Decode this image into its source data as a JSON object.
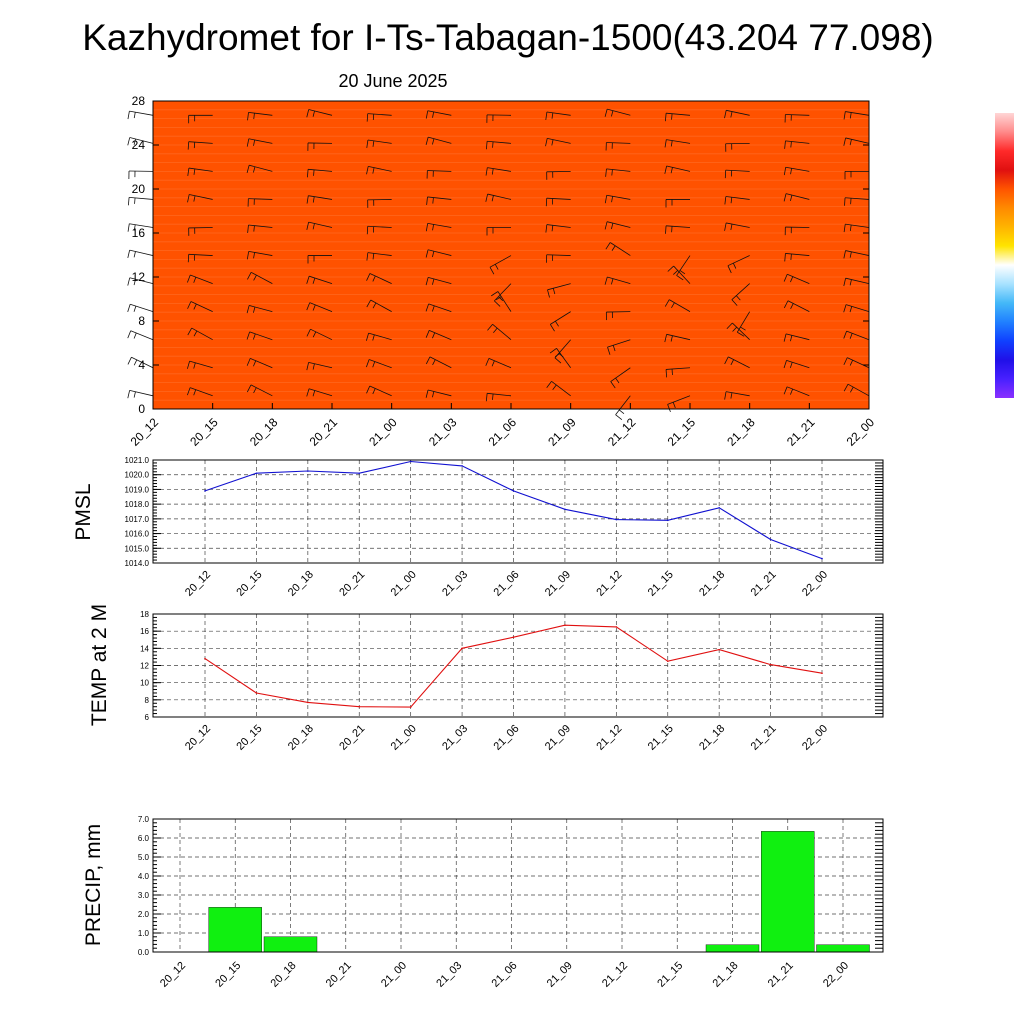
{
  "header": {
    "title": "Kazhydromet for I-Ts-Tabagan-1500(43.204 77.098)",
    "subtitle": "20 June 2025"
  },
  "chart_data": [
    {
      "type": "heatmap",
      "name": "vertical-profile",
      "x": [
        "20_12",
        "20_15",
        "20_18",
        "20_21",
        "21_00",
        "21_03",
        "21_06",
        "21_09",
        "21_12",
        "21_15",
        "21_18",
        "21_21",
        "22_00"
      ],
      "ylim": [
        0,
        28
      ],
      "yticks": [
        "0",
        "4",
        "8",
        "12",
        "16",
        "20",
        "24",
        "28"
      ],
      "colorscale": [
        {
          "value": 0,
          "color": "#ff5200"
        },
        {
          "value": 3,
          "color": "#ff6a00"
        },
        {
          "value": 6,
          "color": "#ff8800"
        },
        {
          "value": 9,
          "color": "#ffae00"
        },
        {
          "value": 11,
          "color": "#ffe030"
        },
        {
          "value": 11.6,
          "color": "#fff8b8"
        },
        {
          "value": 12.2,
          "color": "#eef6ff"
        },
        {
          "value": 13.5,
          "color": "#9ad8f8"
        },
        {
          "value": 15,
          "color": "#44b6f6"
        },
        {
          "value": 16.5,
          "color": "#2e8cf2"
        },
        {
          "value": 18,
          "color": "#205cff"
        },
        {
          "value": 19,
          "color": "#1030f0"
        },
        {
          "value": 20,
          "color": "#1a14e6"
        },
        {
          "value": 21,
          "color": "#3a12ff"
        },
        {
          "value": 22,
          "color": "#6422ff"
        },
        {
          "value": 23,
          "color": "#8a2cff"
        },
        {
          "value": 28,
          "color": "#8c2eff"
        }
      ],
      "colorbar": [
        "#ffd6d6",
        "#ff8a8a",
        "#ff2a2a",
        "#e01010",
        "#ff5400",
        "#ff8a00",
        "#ffb400",
        "#ffe400",
        "#ffffff",
        "#a8e2ff",
        "#44b8f8",
        "#2080ff",
        "#1040ff",
        "#2010e8",
        "#4820ff",
        "#8a30ff"
      ]
    },
    {
      "type": "line",
      "name": "pmsl",
      "ylabel": "PMSL",
      "x": [
        "20_12",
        "20_15",
        "20_18",
        "20_21",
        "21_00",
        "21_03",
        "21_06",
        "21_09",
        "21_12",
        "21_15",
        "21_18",
        "21_21",
        "22_00"
      ],
      "values": [
        1018.9,
        1020.1,
        1020.25,
        1020.1,
        1020.9,
        1020.6,
        1018.9,
        1017.65,
        1016.95,
        1016.9,
        1017.75,
        1015.6,
        1014.3
      ],
      "ylim": [
        1014.0,
        1021.0
      ],
      "yticks": [
        "1014.0",
        "1015.0",
        "1016.0",
        "1017.0",
        "1018.0",
        "1019.0",
        "1020.0",
        "1021.0"
      ],
      "color": "#1010d0",
      "grid": true
    },
    {
      "type": "line",
      "name": "temp",
      "ylabel": "TEMP at 2 M",
      "x": [
        "20_12",
        "20_15",
        "20_18",
        "20_21",
        "21_00",
        "21_03",
        "21_06",
        "21_09",
        "21_12",
        "21_15",
        "21_18",
        "21_21",
        "22_00"
      ],
      "values": [
        12.8,
        8.8,
        7.7,
        7.2,
        7.15,
        14.0,
        15.3,
        16.7,
        16.5,
        12.5,
        13.85,
        12.1,
        11.1
      ],
      "ylim": [
        6,
        18
      ],
      "yticks": [
        "6",
        "8",
        "10",
        "12",
        "14",
        "16",
        "18"
      ],
      "color": "#e01010",
      "grid": true
    },
    {
      "type": "bar",
      "name": "precip",
      "ylabel": "PRECIP, mm",
      "categories": [
        "20_12",
        "20_15",
        "20_18",
        "20_21",
        "21_00",
        "21_03",
        "21_06",
        "21_09",
        "21_12",
        "21_15",
        "21_18",
        "21_21",
        "22_00"
      ],
      "values": [
        0,
        2.35,
        0.8,
        0,
        0,
        0,
        0,
        0,
        0,
        0,
        0.38,
        6.35,
        0.38
      ],
      "ylim": [
        0.0,
        7.0
      ],
      "yticks": [
        "0.0",
        "1.0",
        "2.0",
        "3.0",
        "4.0",
        "5.0",
        "6.0",
        "7.0"
      ],
      "color": "#10f010",
      "grid": true
    }
  ]
}
